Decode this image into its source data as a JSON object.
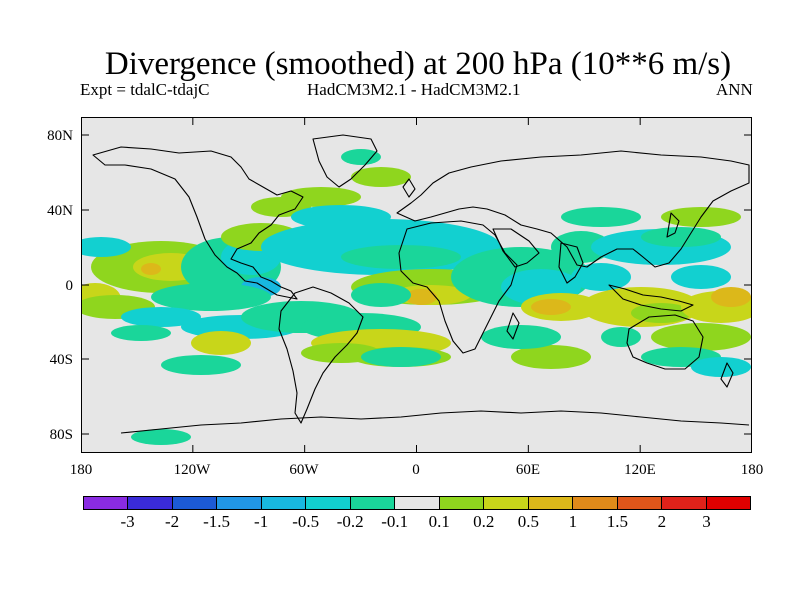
{
  "figure": {
    "title": "Divergence (smoothed) at 200 hPa (10**6 m/s)",
    "experiment": "Expt = tdalC-tdajC",
    "comparison": "HadCM3M2.1 - HadCM3M2.1",
    "season": "ANN"
  },
  "axes": {
    "latitude_labels": [
      "80N",
      "40N",
      "0",
      "40S",
      "80S"
    ],
    "longitude_labels": [
      "180",
      "120W",
      "60W",
      "0",
      "60E",
      "120E",
      "180"
    ]
  },
  "colorbar": {
    "labels": [
      "-3",
      "-2",
      "-1.5",
      "-1",
      "-0.5",
      "-0.2",
      "-0.1",
      "0.1",
      "0.2",
      "0.5",
      "1",
      "1.5",
      "2",
      "3"
    ],
    "colors": [
      "#8a2be2",
      "#3a2bd8",
      "#1c5ad6",
      "#2196e6",
      "#18b8e0",
      "#12d0d0",
      "#1ad69a",
      "#e6e6e6",
      "#8fd61e",
      "#c8d61a",
      "#dcb81a",
      "#e08a1a",
      "#e0561a",
      "#e0221a",
      "#e00000"
    ]
  },
  "map": {
    "background_color": "#e6e6e6",
    "land_outline_color": "#000000"
  }
}
